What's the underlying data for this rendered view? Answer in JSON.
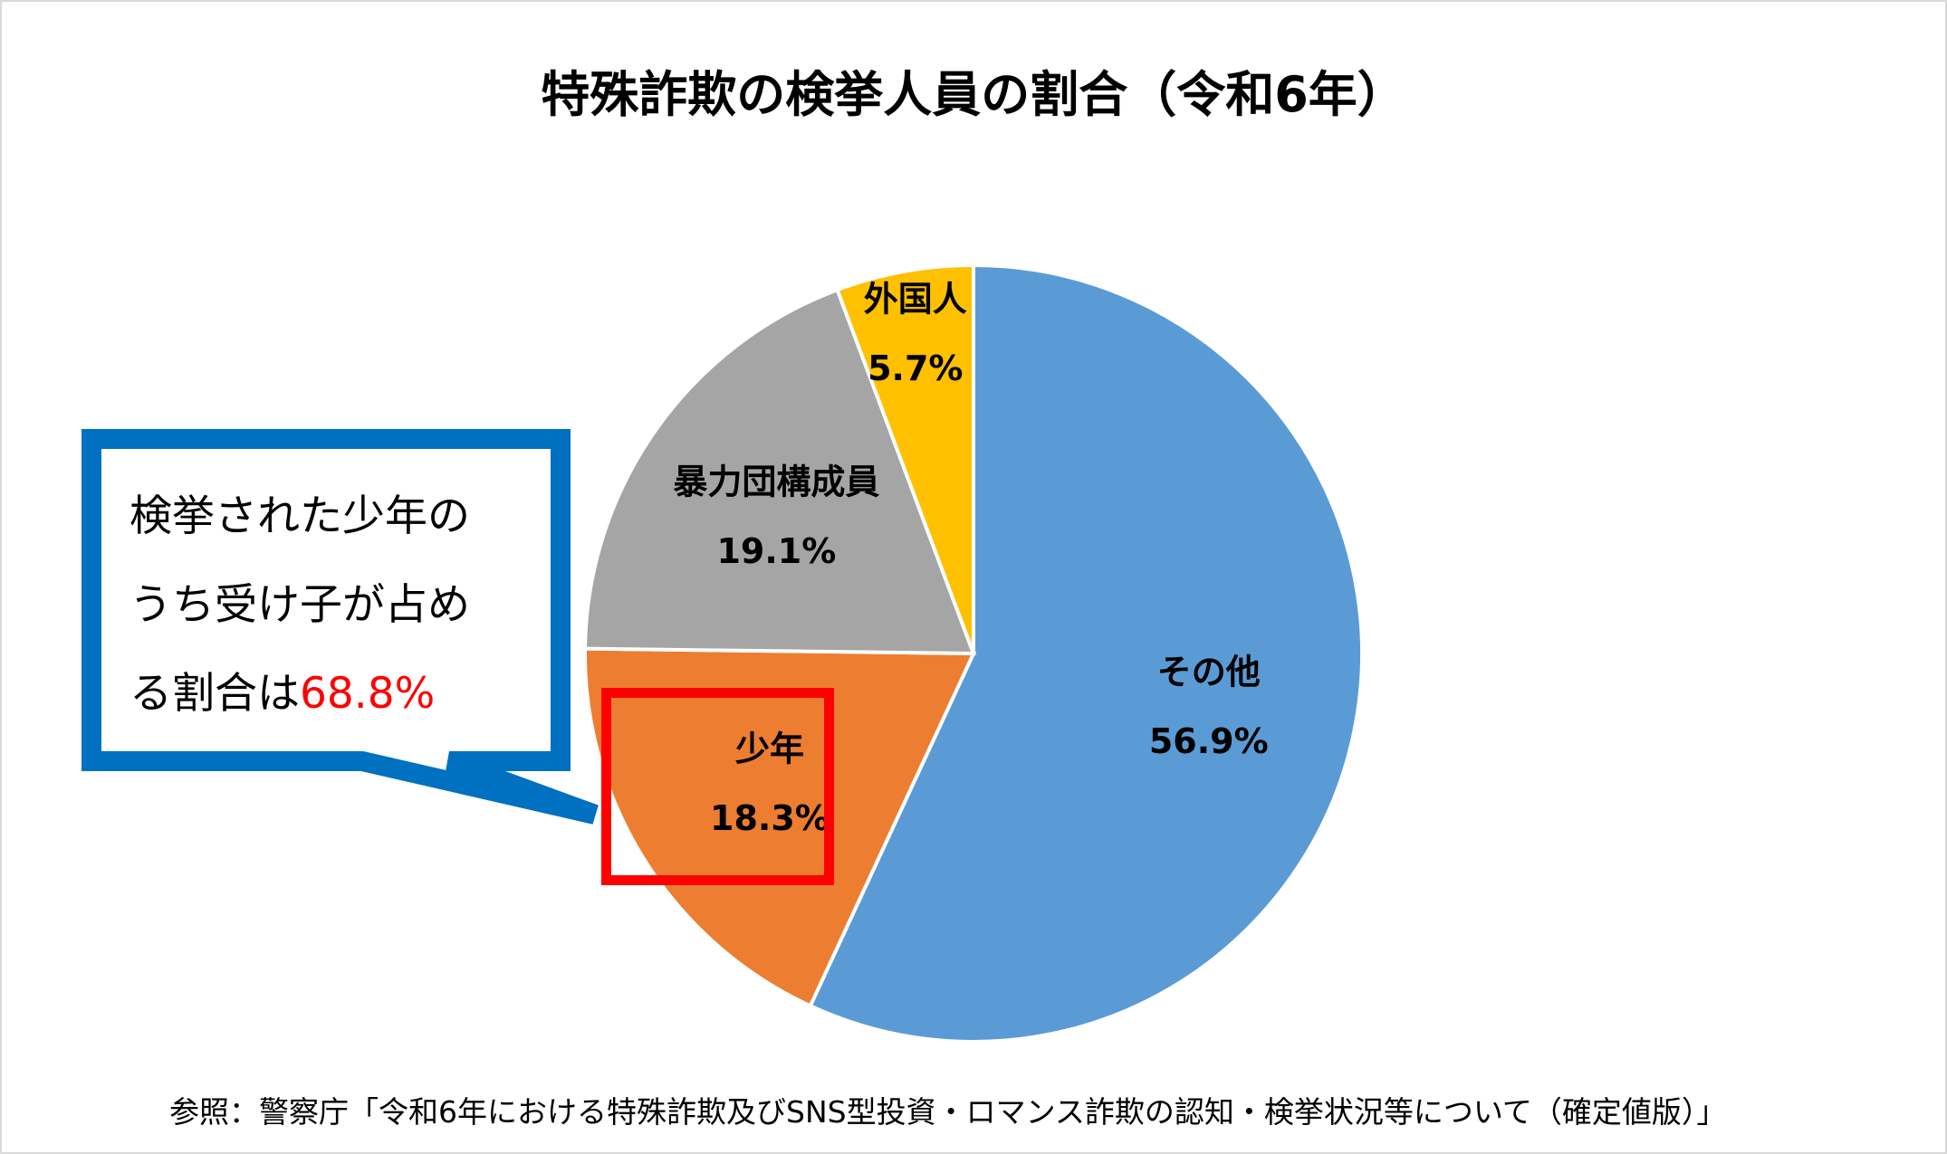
{
  "chart_data": {
    "type": "pie",
    "title": "特殊詐欺の検挙人員の割合（令和6年）",
    "start": "top",
    "direction": "clockwise",
    "slices": [
      {
        "label": "その他",
        "value": 56.9,
        "display": "56.9%",
        "color": "#5B9BD5"
      },
      {
        "label": "少年",
        "value": 18.3,
        "display": "18.3%",
        "color": "#ED7D31"
      },
      {
        "label": "暴力団構成員",
        "value": 19.1,
        "display": "19.1%",
        "color": "#A5A5A5"
      },
      {
        "label": "外国人",
        "value": 5.7,
        "display": "5.7%",
        "color": "#FFC000"
      }
    ],
    "highlighted_slice": "少年",
    "highlight_color": "#FF0000"
  },
  "callout": {
    "line1": "検挙された少年の",
    "line2": "うち受け子が占め",
    "line3_prefix": "る割合は",
    "line3_value": "68.8%",
    "border_color": "#0070C0",
    "value_color": "#FF0000"
  },
  "source": "参照：警察庁「令和6年における特殊詐欺及びSNS型投資・ロマンス詐欺の認知・検挙状況等について（確定値版）」"
}
